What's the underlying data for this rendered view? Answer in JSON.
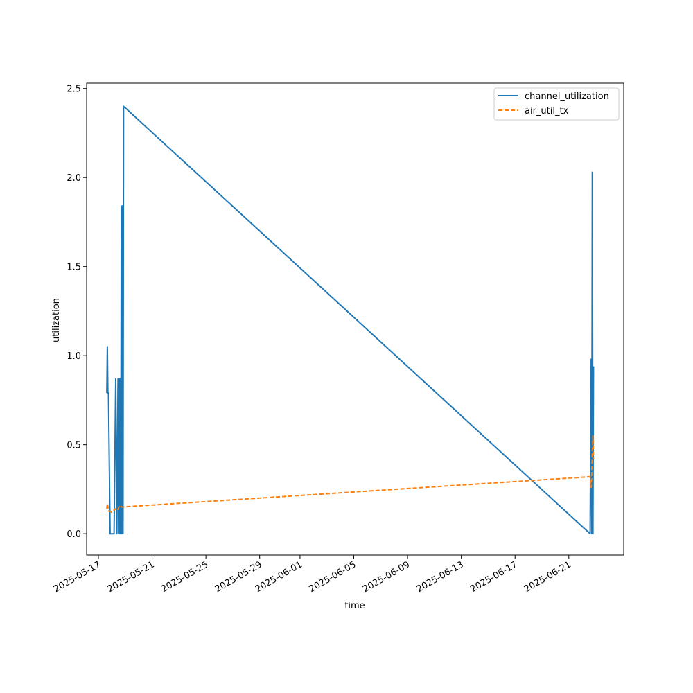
{
  "chart_data": {
    "type": "line",
    "title": "",
    "xlabel": "time",
    "ylabel": "utilization",
    "x_ticks": [
      "2025-05-17",
      "2025-05-21",
      "2025-05-25",
      "2025-05-29",
      "2025-06-01",
      "2025-06-05",
      "2025-06-09",
      "2025-06-13",
      "2025-06-17",
      "2025-06-21"
    ],
    "xlim": [
      "2025-05-16T03:00",
      "2025-06-25T02:00"
    ],
    "y_ticks": [
      "0.0",
      "0.5",
      "1.0",
      "1.5",
      "2.0",
      "2.5"
    ],
    "ylim": [
      -0.12,
      2.53
    ],
    "grid": false,
    "legend_position": "top-right",
    "series": [
      {
        "name": "channel_utilization",
        "color": "#1f77b4",
        "style": "solid",
        "points": [
          [
            "2025-05-17T15:00",
            0.79
          ],
          [
            "2025-05-17T16:00",
            1.05
          ],
          [
            "2025-05-17T17:00",
            0.79
          ],
          [
            "2025-05-17T18:00",
            0.79
          ],
          [
            "2025-05-17T21:00",
            0.0
          ],
          [
            "2025-05-18T04:00",
            0.0
          ],
          [
            "2025-05-18T07:00",
            0.87
          ],
          [
            "2025-05-18T09:00",
            0.0
          ],
          [
            "2025-05-18T11:00",
            0.87
          ],
          [
            "2025-05-18T12:00",
            0.0
          ],
          [
            "2025-05-18T13:00",
            0.87
          ],
          [
            "2025-05-18T14:00",
            0.0
          ],
          [
            "2025-05-18T15:00",
            0.87
          ],
          [
            "2025-05-18T16:00",
            0.0
          ],
          [
            "2025-05-18T17:00",
            1.84
          ],
          [
            "2025-05-18T18:00",
            0.0
          ],
          [
            "2025-05-18T19:00",
            1.84
          ],
          [
            "2025-05-18T20:00",
            0.0
          ],
          [
            "2025-05-18T21:00",
            2.4
          ],
          [
            "2025-06-22T14:00",
            0.0
          ],
          [
            "2025-06-22T16:00",
            0.98
          ],
          [
            "2025-06-22T17:00",
            0.0
          ],
          [
            "2025-06-22T18:00",
            2.03
          ],
          [
            "2025-06-22T19:00",
            0.0
          ],
          [
            "2025-06-22T20:00",
            0.94
          ]
        ]
      },
      {
        "name": "air_util_tx",
        "color": "#ff7f0e",
        "style": "dashed",
        "points": [
          [
            "2025-05-17T15:00",
            0.14
          ],
          [
            "2025-05-17T16:00",
            0.17
          ],
          [
            "2025-05-17T18:00",
            0.13
          ],
          [
            "2025-05-18T00:00",
            0.12
          ],
          [
            "2025-05-18T06:00",
            0.14
          ],
          [
            "2025-05-18T10:00",
            0.13
          ],
          [
            "2025-05-18T14:00",
            0.16
          ],
          [
            "2025-05-18T18:00",
            0.15
          ],
          [
            "2025-06-22T14:00",
            0.32
          ],
          [
            "2025-06-22T16:00",
            0.26
          ],
          [
            "2025-06-22T17:00",
            0.34
          ],
          [
            "2025-06-22T18:00",
            0.45
          ],
          [
            "2025-06-22T19:00",
            0.55
          ],
          [
            "2025-06-22T20:00",
            0.42
          ]
        ]
      }
    ]
  }
}
